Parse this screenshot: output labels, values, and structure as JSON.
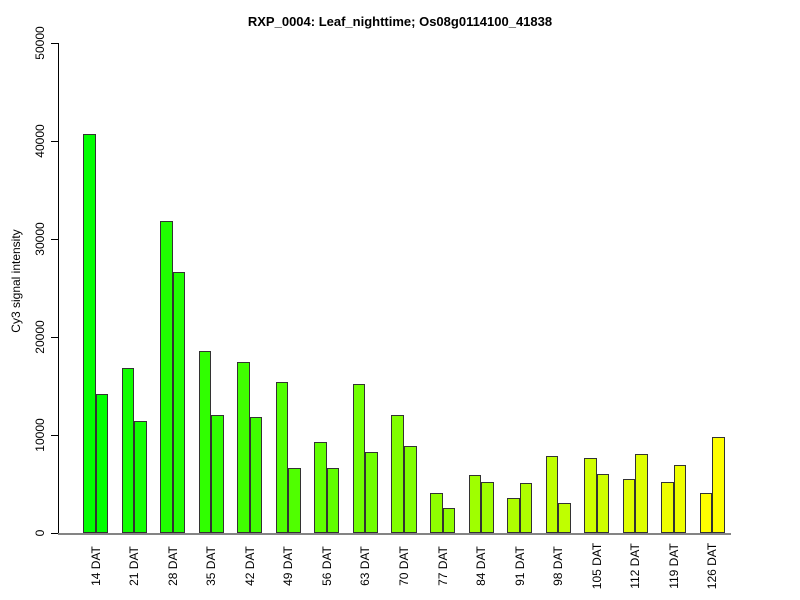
{
  "chart_data": {
    "type": "bar",
    "title": "RXP_0004: Leaf_nighttime; Os08g0114100_41838",
    "ylabel": "Cy3 signal intensity",
    "xlabel": "",
    "categories": [
      "14 DAT",
      "21 DAT",
      "28 DAT",
      "35 DAT",
      "42 DAT",
      "49 DAT",
      "56 DAT",
      "63 DAT",
      "70 DAT",
      "77 DAT",
      "84 DAT",
      "91 DAT",
      "98 DAT",
      "105 DAT",
      "112 DAT",
      "119 DAT",
      "126 DAT"
    ],
    "series": [
      {
        "name": "left_bar",
        "values": [
          40700,
          16800,
          31800,
          18600,
          17400,
          15400,
          9300,
          15200,
          12000,
          4100,
          5900,
          3600,
          7900,
          7700,
          5500,
          5200,
          4100
        ]
      },
      {
        "name": "right_bar",
        "values": [
          14200,
          11400,
          26600,
          12000,
          11800,
          6600,
          6600,
          8300,
          8900,
          2600,
          5200,
          5100,
          3100,
          6000,
          8100,
          6900,
          9800
        ]
      }
    ],
    "ylim": [
      0,
      50000
    ],
    "y_ticks": [
      0,
      10000,
      20000,
      30000,
      40000,
      50000
    ],
    "y_tick_labels": [
      "0",
      "10000",
      "20000",
      "30000",
      "40000",
      "50000"
    ],
    "grid": false,
    "legend": "none",
    "bar_colors": [
      "#00FF00",
      "#10FF00",
      "#20FF00",
      "#30FF00",
      "#40FF00",
      "#50FF00",
      "#60FF00",
      "#70FF00",
      "#80FF00",
      "#8FFF00",
      "#9FFF00",
      "#AFFF00",
      "#BFFF00",
      "#CFFF00",
      "#DFFF00",
      "#EFFF00",
      "#FFFF00"
    ],
    "bar_border_color": "#333333",
    "axis_color": "#000000",
    "baseline_color": "#848484",
    "background_color": "#FFFFFF"
  }
}
